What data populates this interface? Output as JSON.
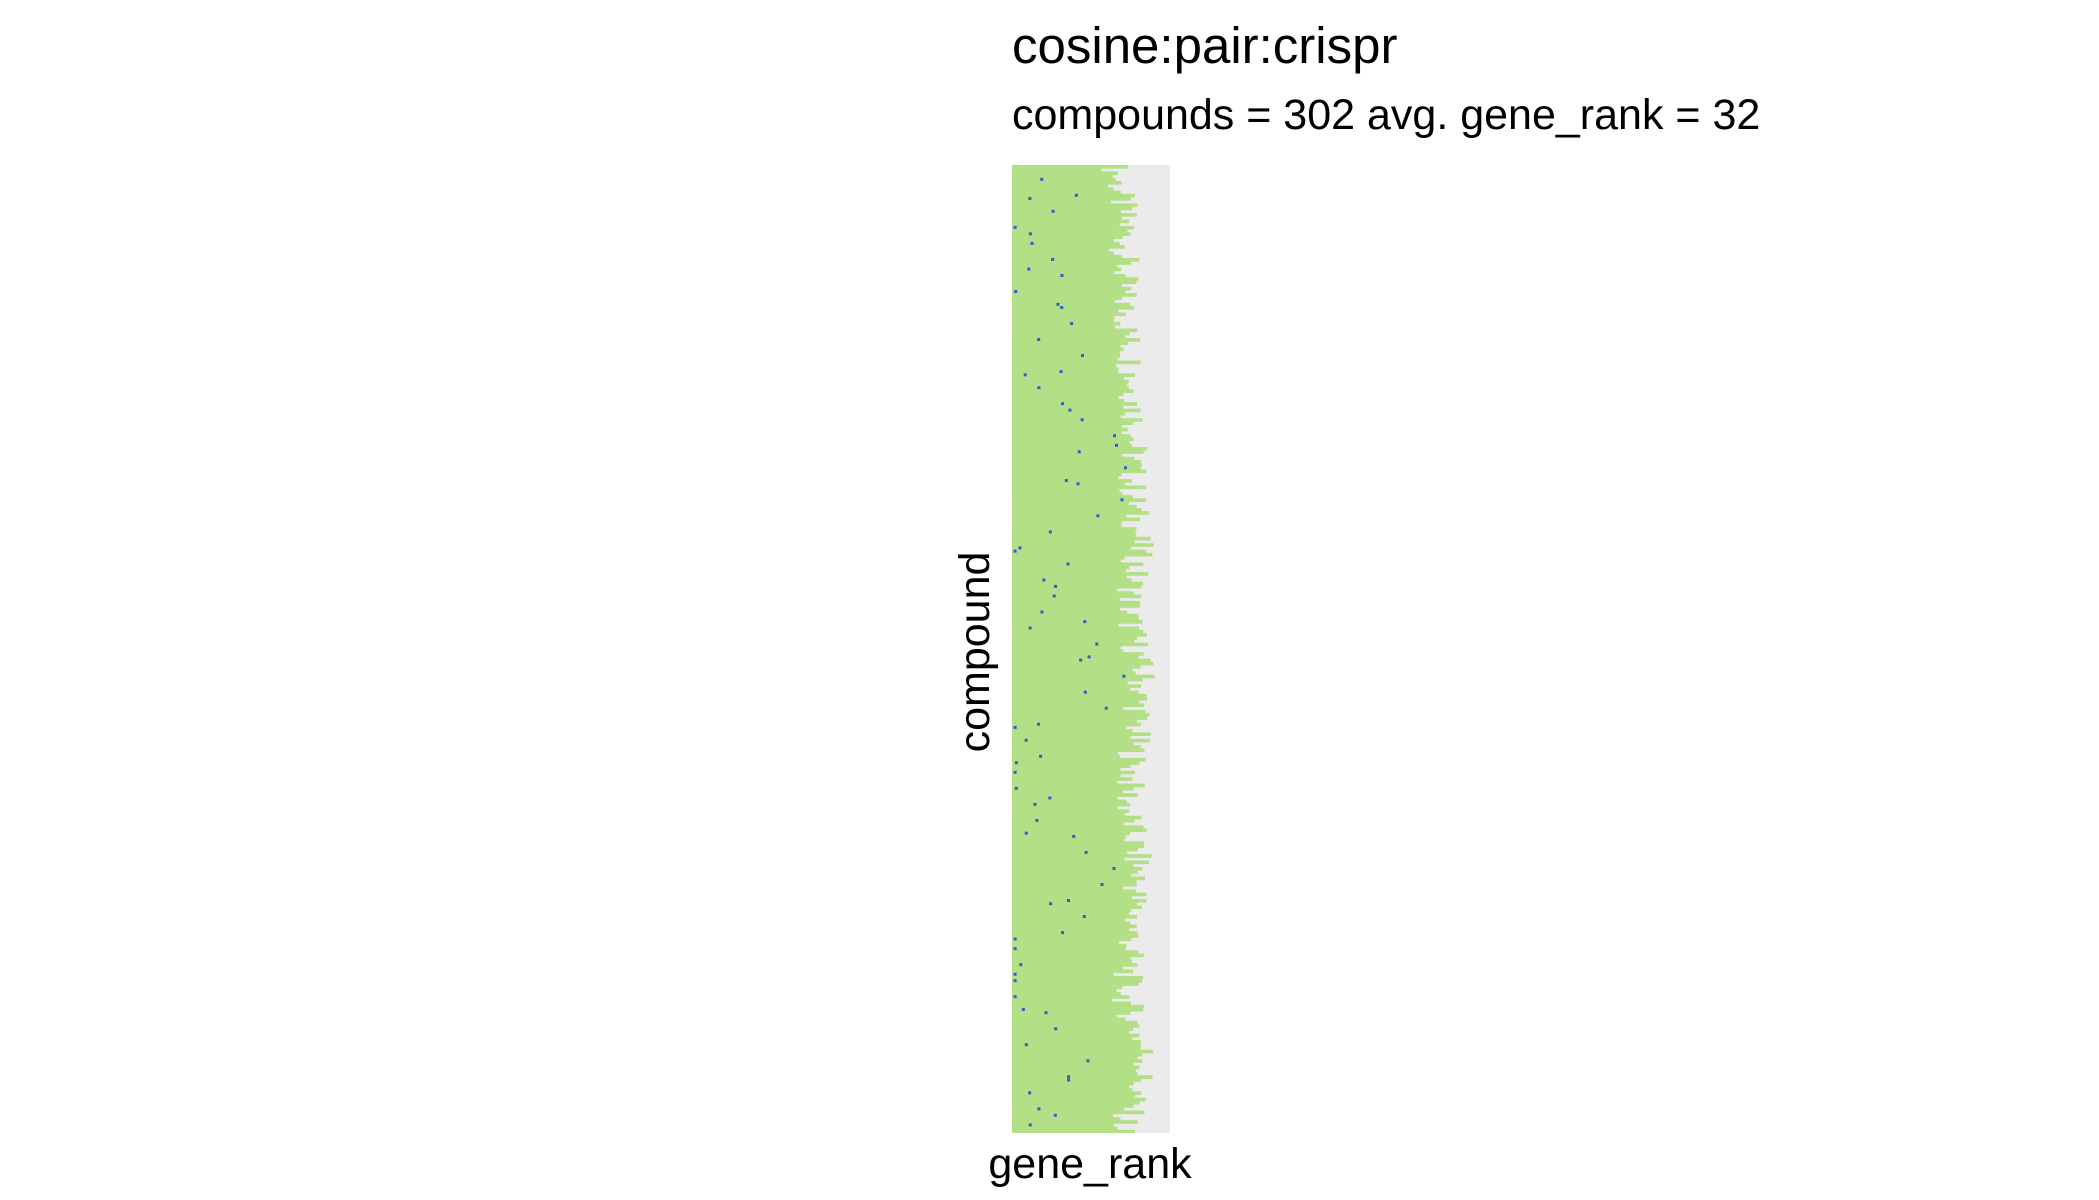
{
  "chart_data": {
    "type": "heatmap",
    "title": "cosine:pair:crispr",
    "subtitle": "compounds = 302 avg. gene_rank = 32",
    "xlabel": "gene_rank",
    "ylabel": "compound",
    "n_compounds": 302,
    "avg_gene_rank": 32,
    "x_range": [
      0,
      100
    ],
    "fill_encoding": "bar length per compound row = number of ranked genes; blue tiles = gene_rank of hit",
    "colors": {
      "panel_background": "#ebebeb",
      "bar_fill": "#b3df86",
      "hit": "#2a5fd0"
    },
    "sample_rows": [
      {
        "row": 1,
        "bar_end": 65,
        "hit_rank": 25
      },
      {
        "row": 20,
        "bar_end": 72,
        "hit_rank": 5
      },
      {
        "row": 40,
        "bar_end": 70,
        "hit_rank": 13
      },
      {
        "row": 60,
        "bar_end": 75,
        "hit_rank": 20
      },
      {
        "row": 80,
        "bar_end": 78,
        "hit_rank": 35
      },
      {
        "row": 100,
        "bar_end": 76,
        "hit_rank": 58
      },
      {
        "row": 120,
        "bar_end": 80,
        "hit_rank": 10
      },
      {
        "row": 140,
        "bar_end": 74,
        "hit_rank": 25
      },
      {
        "row": 160,
        "bar_end": 82,
        "hit_rank": 60
      },
      {
        "row": 180,
        "bar_end": 78,
        "hit_rank": 15
      },
      {
        "row": 200,
        "bar_end": 73,
        "hit_rank": 5
      },
      {
        "row": 220,
        "bar_end": 80,
        "hit_rank": 50
      },
      {
        "row": 240,
        "bar_end": 76,
        "hit_rank": 15
      },
      {
        "row": 260,
        "bar_end": 72,
        "hit_rank": 3
      },
      {
        "row": 280,
        "bar_end": 85,
        "hit_rank": 40
      },
      {
        "row": 302,
        "bar_end": 70,
        "hit_rank": 20
      }
    ]
  }
}
